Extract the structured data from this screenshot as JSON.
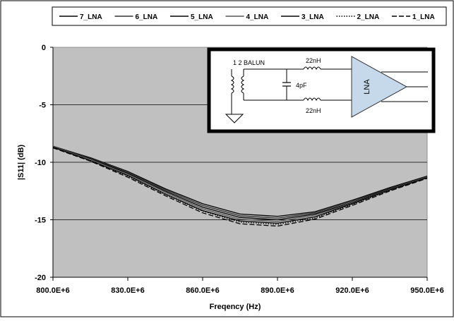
{
  "chart_data": {
    "type": "line",
    "title": "",
    "xlabel": "Freqency (Hz)",
    "ylabel": "|S11| (dB)",
    "xlim": [
      800000000,
      950000000
    ],
    "ylim": [
      -20,
      0
    ],
    "x_ticks": [
      800000000,
      830000000,
      860000000,
      890000000,
      920000000,
      950000000
    ],
    "x_tick_labels": [
      "800.0E+6",
      "830.0E+6",
      "860.0E+6",
      "890.0E+6",
      "920.0E+6",
      "950.0E+6"
    ],
    "y_ticks": [
      0,
      -5,
      -10,
      -15,
      -20
    ],
    "y_tick_labels": [
      "0",
      "-5",
      "-10",
      "-15",
      "-20"
    ],
    "grid": "horizontal",
    "plot_background": "#c0c0c0",
    "legend_position": "top",
    "x": [
      800000000,
      815000000,
      830000000,
      845000000,
      860000000,
      875000000,
      890000000,
      905000000,
      920000000,
      935000000,
      950000000
    ],
    "series": [
      {
        "name": "7_LNA",
        "dash": "solid",
        "color": "#000000",
        "values": [
          -8.6,
          -9.6,
          -10.8,
          -12.3,
          -13.6,
          -14.5,
          -14.7,
          -14.3,
          -13.3,
          -12.2,
          -11.2
        ]
      },
      {
        "name": "6_LNA",
        "dash": "solid",
        "color": "#333333",
        "values": [
          -8.6,
          -9.65,
          -10.85,
          -12.4,
          -13.75,
          -14.65,
          -14.85,
          -14.4,
          -13.4,
          -12.25,
          -11.25
        ]
      },
      {
        "name": "5_LNA",
        "dash": "solid",
        "color": "#000000",
        "values": [
          -8.65,
          -9.7,
          -10.95,
          -12.5,
          -13.9,
          -14.8,
          -15.0,
          -14.5,
          -13.5,
          -12.3,
          -11.3
        ]
      },
      {
        "name": "4_LNA",
        "dash": "solid",
        "color": "#555555",
        "values": [
          -8.65,
          -9.75,
          -11.05,
          -12.6,
          -14.05,
          -14.95,
          -15.15,
          -14.6,
          -13.55,
          -12.35,
          -11.3
        ]
      },
      {
        "name": "3_LNA",
        "dash": "solid",
        "color": "#000000",
        "values": [
          -8.7,
          -9.85,
          -11.15,
          -12.75,
          -14.2,
          -15.1,
          -15.3,
          -14.75,
          -13.6,
          -12.4,
          -11.35
        ]
      },
      {
        "name": "2_LNA",
        "dash": "dotted",
        "color": "#000000",
        "values": [
          -8.7,
          -9.85,
          -11.2,
          -12.8,
          -14.25,
          -15.2,
          -15.4,
          -14.85,
          -13.65,
          -12.45,
          -11.35
        ]
      },
      {
        "name": "1_LNA",
        "dash": "dashed",
        "color": "#000000",
        "values": [
          -8.75,
          -9.9,
          -11.3,
          -12.9,
          -14.4,
          -15.35,
          -15.55,
          -14.95,
          -13.75,
          -12.5,
          -11.4
        ]
      }
    ],
    "inset_schematic": {
      "balun_label": "1 2 BALUN",
      "cap_label": "4pF",
      "inductor_top_label": "22nH",
      "inductor_bottom_label": "22nH",
      "amp_label": "LNA"
    }
  }
}
